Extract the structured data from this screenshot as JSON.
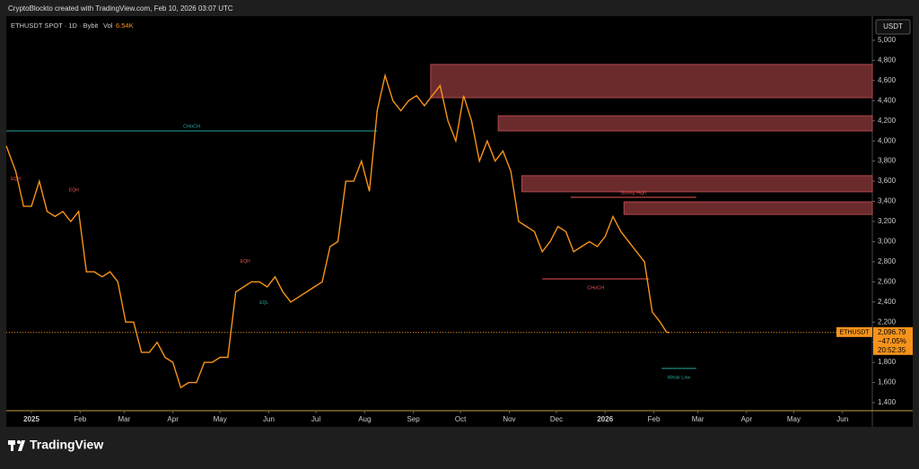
{
  "header": {
    "credit": "CryptoBlockto created with TradingView.com, Feb 10, 2026 03:07 UTC"
  },
  "chart_data": {
    "type": "line",
    "symbol": "ETHUSDT SPOT · 1D · Bybit",
    "volume_label": "Vol",
    "volume": "6.54K",
    "currency": "USDT",
    "x": [
      -16,
      -10,
      -5,
      0,
      5,
      10,
      15,
      20,
      25,
      30,
      35,
      40,
      45,
      50,
      55,
      60,
      65,
      70,
      75,
      80,
      85,
      90,
      95,
      100,
      105,
      110,
      115,
      120,
      125,
      130,
      135,
      140,
      145,
      150,
      155,
      160,
      165,
      170,
      175,
      180,
      185,
      190,
      195,
      200,
      205,
      210,
      215,
      220,
      225,
      230,
      235,
      240,
      245,
      250,
      255,
      260,
      265,
      270,
      275,
      280,
      285,
      290,
      295,
      300,
      305,
      310,
      315,
      320,
      325,
      330,
      335,
      340,
      345,
      350,
      355,
      360,
      365,
      370,
      375,
      380,
      385,
      390,
      395,
      400,
      404,
      406
    ],
    "series": [
      {
        "name": "ETHUSDT",
        "color": "#f7931a",
        "values": [
          3950,
          3700,
          3350,
          3350,
          3600,
          3300,
          3250,
          3300,
          3200,
          3300,
          2700,
          2700,
          2650,
          2700,
          2600,
          2200,
          2200,
          1900,
          1900,
          2000,
          1850,
          1800,
          1550,
          1600,
          1600,
          1800,
          1800,
          1850,
          1850,
          2500,
          2550,
          2600,
          2600,
          2550,
          2650,
          2500,
          2400,
          2450,
          2500,
          2550,
          2600,
          2950,
          3000,
          3600,
          3600,
          3800,
          3500,
          4300,
          4650,
          4400,
          4300,
          4400,
          4450,
          4350,
          4450,
          4550,
          4200,
          4000,
          4450,
          4200,
          3800,
          4000,
          3800,
          3900,
          3700,
          3200,
          3150,
          3100,
          2900,
          3000,
          3150,
          3100,
          2900,
          2950,
          3000,
          2950,
          3050,
          3250,
          3100,
          3000,
          2900,
          2800,
          2300,
          2200,
          2100,
          2096.79
        ]
      }
    ],
    "xlim": [
      -16,
      535
    ],
    "ylim": [
      1320,
      5240
    ],
    "xticks": [
      {
        "value": 0,
        "label": "2025"
      },
      {
        "value": 31,
        "label": "Feb"
      },
      {
        "value": 59,
        "label": "Mar"
      },
      {
        "value": 90,
        "label": "Apr"
      },
      {
        "value": 120,
        "label": "May"
      },
      {
        "value": 151,
        "label": "Jun"
      },
      {
        "value": 181,
        "label": "Jul"
      },
      {
        "value": 212,
        "label": "Aug"
      },
      {
        "value": 243,
        "label": "Sep"
      },
      {
        "value": 273,
        "label": "Oct"
      },
      {
        "value": 304,
        "label": "Nov"
      },
      {
        "value": 334,
        "label": "Dec"
      },
      {
        "value": 365,
        "label": "2026"
      },
      {
        "value": 396,
        "label": "Feb"
      },
      {
        "value": 424,
        "label": "Mar"
      },
      {
        "value": 455,
        "label": "Apr"
      },
      {
        "value": 485,
        "label": "May"
      },
      {
        "value": 516,
        "label": "Jun"
      }
    ],
    "yticks": [
      {
        "value": 1400,
        "label": "1,400"
      },
      {
        "value": 1600,
        "label": "1,600"
      },
      {
        "value": 1800,
        "label": "1,800"
      },
      {
        "value": 2000,
        "label": "2,000"
      },
      {
        "value": 2200,
        "label": "2,200"
      },
      {
        "value": 2400,
        "label": "2,400"
      },
      {
        "value": 2600,
        "label": "2,600"
      },
      {
        "value": 2800,
        "label": "2,800"
      },
      {
        "value": 3000,
        "label": "3,000"
      },
      {
        "value": 3200,
        "label": "3,200"
      },
      {
        "value": 3400,
        "label": "3,400"
      },
      {
        "value": 3600,
        "label": "3,600"
      },
      {
        "value": 3800,
        "label": "3,800"
      },
      {
        "value": 4000,
        "label": "4,000"
      },
      {
        "value": 4200,
        "label": "4,200"
      },
      {
        "value": 4400,
        "label": "4,400"
      },
      {
        "value": 4600,
        "label": "4,600"
      },
      {
        "value": 4800,
        "label": "4,800"
      },
      {
        "value": 5000,
        "label": "5,000"
      }
    ],
    "last_price": {
      "value": 2096.79,
      "label": "2,096.79"
    },
    "change": "−47.05%",
    "countdown": "20:52:35",
    "zones": [
      {
        "x0": 254,
        "low": 4430,
        "high": 4760
      },
      {
        "x0": 297,
        "low": 4100,
        "high": 4250
      },
      {
        "x0": 312,
        "low": 3495,
        "high": 3655
      },
      {
        "x0": 377,
        "low": 3270,
        "high": 3395
      }
    ],
    "zone_color": "#b2474b",
    "levels": [
      {
        "label": "CHoCH",
        "value": 4100,
        "x0": -16,
        "x1": 220,
        "color": "#26a69a"
      },
      {
        "label": "CHoCH",
        "value": 2630,
        "x0": 325,
        "x1": 393,
        "color": "#ef5350"
      },
      {
        "label": "Strong High",
        "value": 3440,
        "x0": 343,
        "x1": 423,
        "color": "#ef5350"
      },
      {
        "label": "Weak Low",
        "value": 1740,
        "x0": 401,
        "x1": 423,
        "color": "#26a69a"
      }
    ],
    "markers": [
      {
        "label": "EQH",
        "x": -10,
        "y": 3620,
        "color": "#ef5350"
      },
      {
        "label": "EQH",
        "x": 27,
        "y": 3510,
        "color": "#ef5350"
      },
      {
        "label": "EQH",
        "x": 136,
        "y": 2800,
        "color": "#ef5350"
      },
      {
        "label": "EQL",
        "x": 148,
        "y": 2390,
        "color": "#26a69a"
      }
    ]
  },
  "footer": {
    "brand": "TradingView"
  }
}
